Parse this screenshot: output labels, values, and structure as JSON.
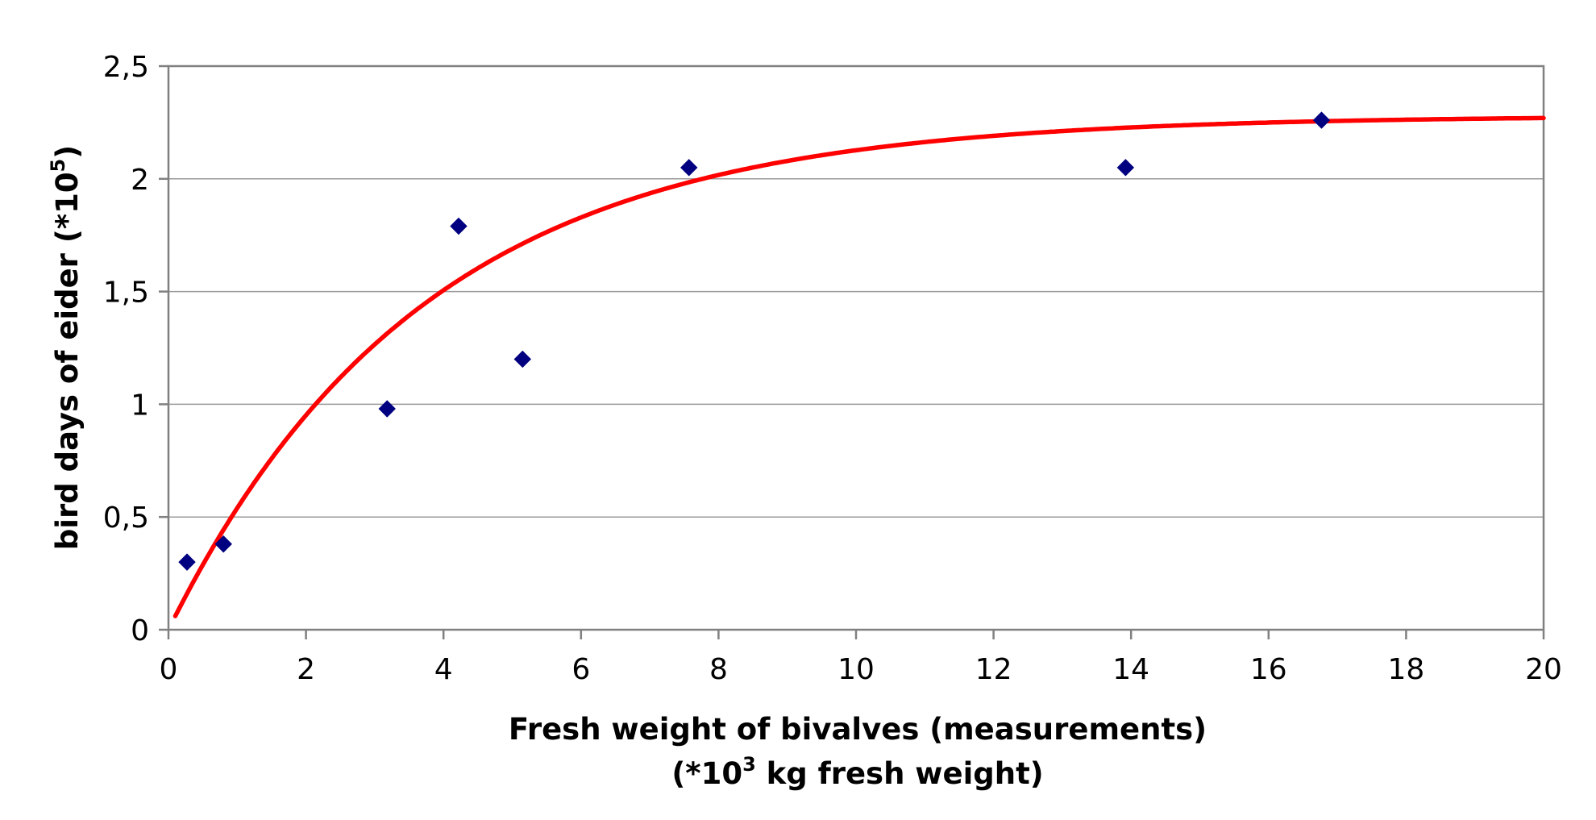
{
  "chart_data": {
    "type": "scatter",
    "xlabel_line1": "Fresh weight of bivalves (measurements)",
    "xlabel_line2_pre": "(*10",
    "xlabel_line2_sup": "3",
    "xlabel_line2_post": " kg fresh weight)",
    "ylabel_pre": "bird days of eider (*10",
    "ylabel_sup": "5",
    "ylabel_post": ")",
    "xlim": [
      0,
      20
    ],
    "ylim": [
      0,
      2.5
    ],
    "x_ticks": [
      "0",
      "2",
      "4",
      "6",
      "8",
      "10",
      "12",
      "14",
      "16",
      "18",
      "20"
    ],
    "y_ticks": [
      "0",
      "0,5",
      "1",
      "1,5",
      "2",
      "2,5"
    ],
    "grid": "horizontal",
    "series": [
      {
        "kind": "points",
        "marker": "diamond",
        "color": "#000080",
        "points": [
          {
            "x": 0.27,
            "y": 0.3
          },
          {
            "x": 0.8,
            "y": 0.38
          },
          {
            "x": 3.18,
            "y": 0.98
          },
          {
            "x": 4.22,
            "y": 1.79
          },
          {
            "x": 5.15,
            "y": 1.2
          },
          {
            "x": 7.57,
            "y": 2.05
          },
          {
            "x": 13.92,
            "y": 2.05
          },
          {
            "x": 16.77,
            "y": 2.26
          }
        ]
      },
      {
        "kind": "curve",
        "color": "#ff0000",
        "curve": {
          "asymptote": 2.28,
          "rate": 0.27,
          "x_start": 0.1,
          "x_end": 20
        }
      }
    ]
  }
}
